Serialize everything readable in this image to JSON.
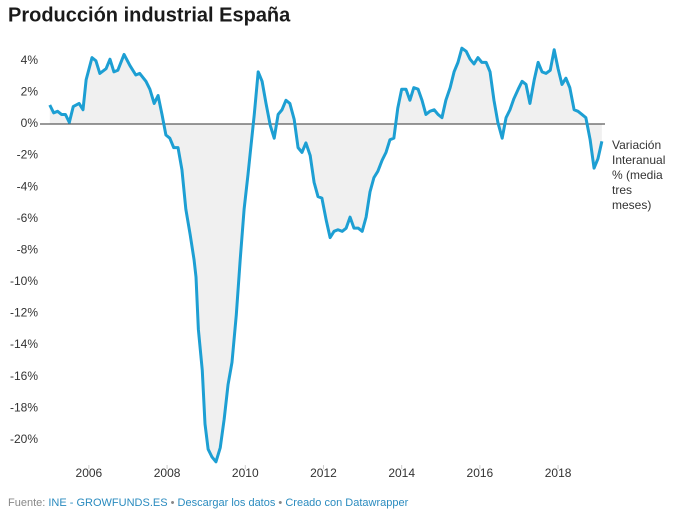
{
  "chart_data": {
    "type": "line",
    "title": "Producción industrial España",
    "x": [
      2005.0,
      2005.1,
      2005.2,
      2005.3,
      2005.4,
      2005.5,
      2005.6,
      2005.75,
      2005.85,
      2005.93,
      2006.08,
      2006.18,
      2006.28,
      2006.44,
      2006.54,
      2006.64,
      2006.74,
      2006.9,
      2007.05,
      2007.2,
      2007.3,
      2007.46,
      2007.56,
      2007.67,
      2007.77,
      2007.87,
      2007.97,
      2008.07,
      2008.17,
      2008.28,
      2008.38,
      2008.48,
      2008.59,
      2008.69,
      2008.74,
      2008.8,
      2008.9,
      2008.97,
      2009.05,
      2009.15,
      2009.25,
      2009.36,
      2009.46,
      2009.56,
      2009.66,
      2009.77,
      2009.87,
      2009.97,
      2010.07,
      2010.12,
      2010.23,
      2010.33,
      2010.43,
      2010.53,
      2010.64,
      2010.74,
      2010.84,
      2010.94,
      2011.04,
      2011.14,
      2011.25,
      2011.35,
      2011.45,
      2011.55,
      2011.66,
      2011.76,
      2011.86,
      2011.96,
      2012.07,
      2012.17,
      2012.27,
      2012.37,
      2012.48,
      2012.58,
      2012.68,
      2012.78,
      2012.89,
      2012.99,
      2013.09,
      2013.19,
      2013.29,
      2013.39,
      2013.5,
      2013.6,
      2013.7,
      2013.8,
      2013.9,
      2014.0,
      2014.11,
      2014.21,
      2014.31,
      2014.42,
      2014.52,
      2014.62,
      2014.72,
      2014.83,
      2014.93,
      2015.03,
      2015.13,
      2015.24,
      2015.34,
      2015.44,
      2015.54,
      2015.65,
      2015.75,
      2015.85,
      2015.95,
      2016.05,
      2016.16,
      2016.26,
      2016.36,
      2016.46,
      2016.57,
      2016.67,
      2016.77,
      2016.87,
      2016.98,
      2017.08,
      2017.18,
      2017.28,
      2017.39,
      2017.49,
      2017.59,
      2017.69,
      2017.8,
      2017.9,
      2018.0,
      2018.1,
      2018.2,
      2018.3,
      2018.41,
      2018.51,
      2018.61,
      2018.71,
      2018.82,
      2018.92,
      2019.02,
      2019.12
    ],
    "series": [
      {
        "name": "Variación Interanual % (media tres meses)",
        "color": "#1d9fd3",
        "values": [
          1.2,
          0.7,
          0.8,
          0.6,
          0.6,
          0.1,
          1.1,
          1.3,
          0.9,
          2.8,
          4.2,
          4.0,
          3.2,
          3.5,
          4.1,
          3.3,
          3.4,
          4.4,
          3.7,
          3.1,
          3.2,
          2.7,
          2.2,
          1.3,
          1.8,
          0.6,
          -0.7,
          -0.9,
          -1.5,
          -1.5,
          -2.9,
          -5.4,
          -7.0,
          -8.6,
          -9.7,
          -13.0,
          -15.6,
          -19.0,
          -20.6,
          -21.1,
          -21.4,
          -20.5,
          -18.7,
          -16.5,
          -15.1,
          -12.1,
          -8.6,
          -5.4,
          -3.2,
          -2.0,
          0.6,
          3.3,
          2.7,
          1.3,
          -0.1,
          -0.9,
          0.6,
          0.9,
          1.5,
          1.3,
          0.3,
          -1.5,
          -1.8,
          -1.2,
          -2.0,
          -3.7,
          -4.6,
          -4.7,
          -6.1,
          -7.2,
          -6.8,
          -6.7,
          -6.8,
          -6.6,
          -5.9,
          -6.6,
          -6.6,
          -6.8,
          -5.9,
          -4.3,
          -3.4,
          -3.0,
          -2.3,
          -1.8,
          -1.0,
          -0.9,
          1.0,
          2.2,
          2.2,
          1.5,
          2.3,
          2.2,
          1.5,
          0.6,
          0.8,
          0.9,
          0.6,
          0.4,
          1.5,
          2.3,
          3.3,
          3.9,
          4.8,
          4.6,
          4.1,
          3.8,
          4.2,
          3.9,
          3.9,
          3.3,
          1.5,
          0.1,
          -0.9,
          0.4,
          0.9,
          1.6,
          2.2,
          2.7,
          2.5,
          1.3,
          2.8,
          3.9,
          3.3,
          3.2,
          3.4,
          4.7,
          3.5,
          2.5,
          2.9,
          2.3,
          0.9,
          0.8,
          0.6,
          0.4,
          -1.0,
          -2.8,
          -2.2,
          -1.1
        ]
      }
    ],
    "xlim": [
      2004.75,
      2019.2
    ],
    "xticks": [
      2006,
      2008,
      2010,
      2012,
      2014,
      2016,
      2018
    ],
    "ylim": [
      -21.6,
      5
    ],
    "yticks": [
      {
        "value": 4,
        "label": "4%"
      },
      {
        "value": 2,
        "label": "2%"
      },
      {
        "value": 0,
        "label": "0%"
      },
      {
        "value": -2,
        "label": "-2%"
      },
      {
        "value": -4,
        "label": "-4%"
      },
      {
        "value": -6,
        "label": "-6%"
      },
      {
        "value": -8,
        "label": "-8%"
      },
      {
        "value": -10,
        "label": "-10%"
      },
      {
        "value": -12,
        "label": "-12%"
      },
      {
        "value": -14,
        "label": "-14%"
      },
      {
        "value": -16,
        "label": "-16%"
      },
      {
        "value": -18,
        "label": "-18%"
      },
      {
        "value": -20,
        "label": "-20%"
      }
    ],
    "grid": false,
    "area_fill": "#f0f0f0",
    "footer": {
      "source_label": "Fuente:",
      "source": "INE - GROWFUNDS.ES",
      "separator": "•",
      "download": "Descargar los datos",
      "credit": "Creado con Datawrapper"
    }
  }
}
